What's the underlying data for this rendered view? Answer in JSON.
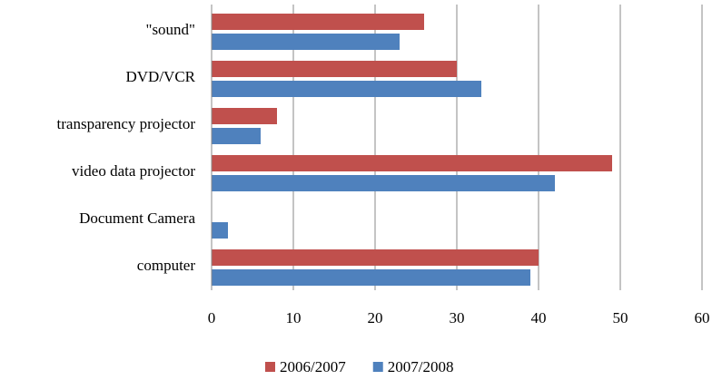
{
  "chart_data": {
    "type": "hbar",
    "categories": [
      "\"sound\"",
      "DVD/VCR",
      "transparency projector",
      "video data projector",
      "Document Camera",
      "computer"
    ],
    "series": [
      {
        "name": "2006/2007",
        "color": "#c0504d",
        "values": [
          26,
          30,
          8,
          49,
          0,
          40
        ]
      },
      {
        "name": "2007/2008",
        "color": "#4f81bd",
        "values": [
          23,
          33,
          6,
          42,
          2,
          39
        ]
      }
    ],
    "xlim": [
      0,
      60
    ],
    "xticks": [
      0,
      10,
      20,
      30,
      40,
      50,
      60
    ],
    "grid": true,
    "legend": "bottom"
  }
}
